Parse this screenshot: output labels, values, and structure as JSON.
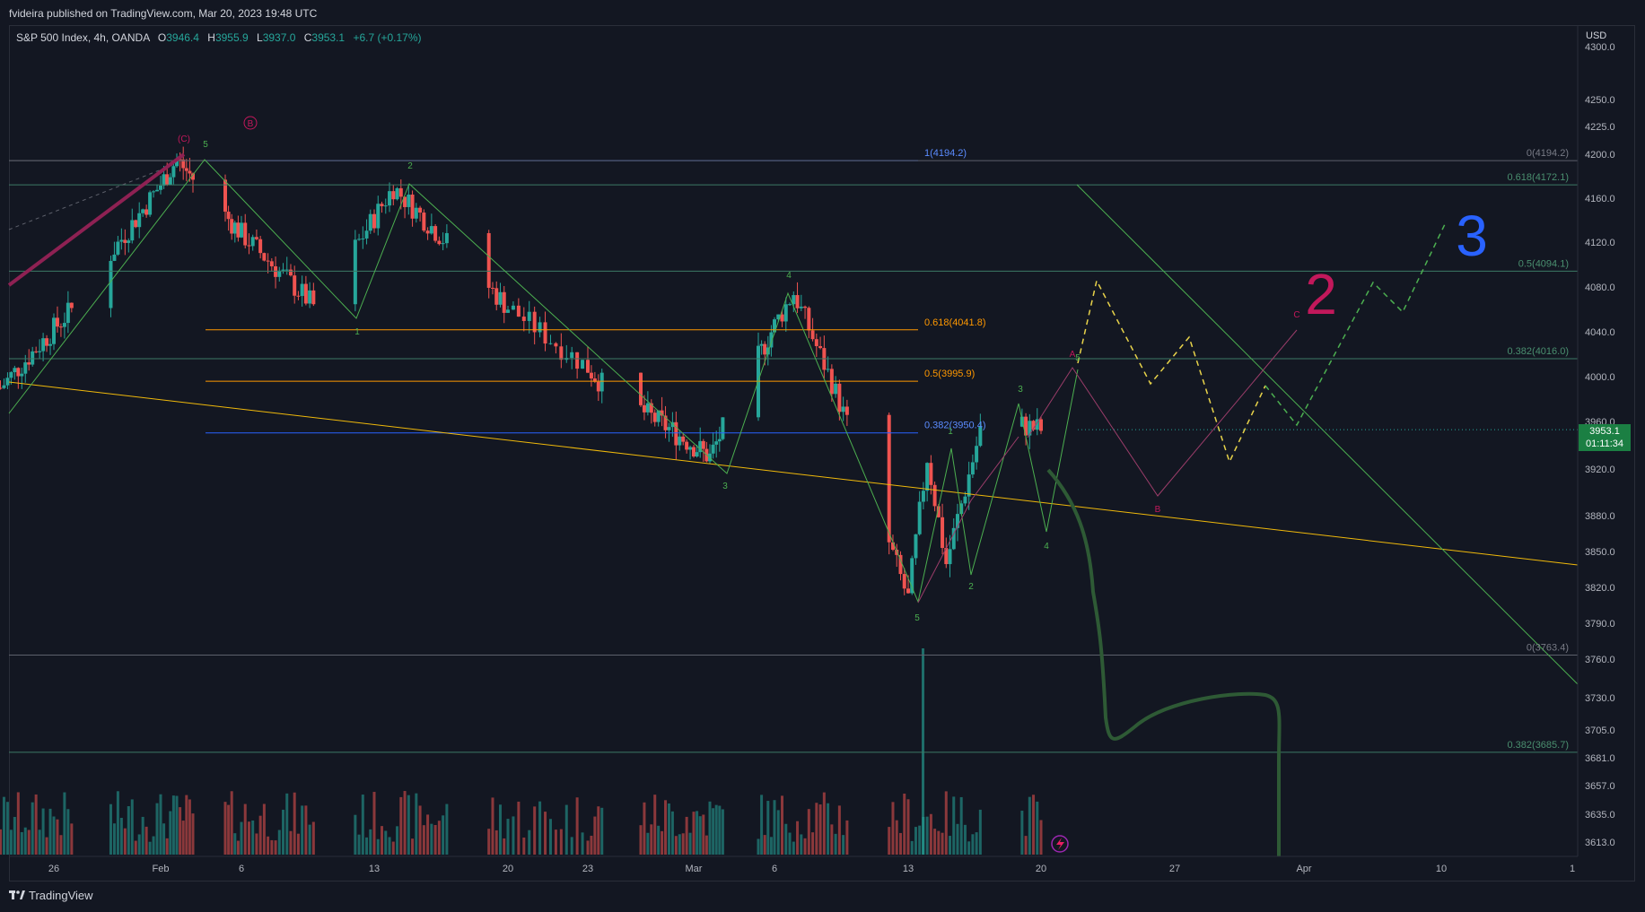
{
  "header": {
    "publish_line": "fvideira published on TradingView.com, Mar 20, 2023 19:48 UTC"
  },
  "legend": {
    "symbol": "S&P 500 Index, 4h, OANDA",
    "open_label": "O",
    "open": "3946.4",
    "high_label": "H",
    "high": "3955.9",
    "low_label": "L",
    "low": "3937.0",
    "close_label": "C",
    "close": "3953.1",
    "change": "+6.7 (+0.17%)"
  },
  "price_axis": {
    "currency": "USD",
    "current_price": "3953.1",
    "countdown": "01:11:34"
  },
  "footer": {
    "brand": "TradingView"
  },
  "colors": {
    "background": "#131722",
    "up": "#26a69a",
    "down": "#ef5350",
    "wave_green": "#4caf50",
    "fib_blue": "#2962ff",
    "fib_orange": "#ff9800",
    "trend_yellow": "#f0b90b",
    "projection_red": "#e91e63",
    "path_dark_green": "#2e5a35",
    "annot_blue": "#2962ff",
    "annot_magenta": "#c2185b"
  },
  "chart_data": {
    "type": "candlestick",
    "symbol": "S&P 500 Index",
    "interval": "4h",
    "source": "OANDA",
    "ylim": [
      3600,
      4310
    ],
    "y_ticks": [
      4300.0,
      4250.0,
      4225.0,
      4200.0,
      4160.0,
      4120.0,
      4080.0,
      4040.0,
      4000.0,
      3960.0,
      3920.0,
      3880.0,
      3850.0,
      3820.0,
      3790.0,
      3760.0,
      3730.0,
      3705.0,
      3681.0,
      3657.0,
      3635.0,
      3613.0
    ],
    "y_tick_labels": [
      "4300.0",
      "4250.0",
      "4225.0",
      "4200.0",
      "4160.0",
      "4120.0",
      "4080.0",
      "4040.0",
      "4000.0",
      "3960.0",
      "3920.0",
      "3880.0",
      "3850.0",
      "3820.0",
      "3790.0",
      "3760.0",
      "3730.0",
      "3705.0",
      "3681.0",
      "3657.0",
      "3635.0",
      "3613.0"
    ],
    "x_tick_labels": [
      "26",
      "Feb",
      "6",
      "13",
      "20",
      "23",
      "Mar",
      "6",
      "13",
      "20",
      "27",
      "Apr",
      "10",
      "1"
    ],
    "price_anchors": [
      {
        "date": "Jan 23",
        "price": 3990
      },
      {
        "date": "Jan 27",
        "price": 4060
      },
      {
        "date": "Feb 2",
        "price": 4195
      },
      {
        "date": "Feb 10",
        "price": 4060
      },
      {
        "date": "Feb 14",
        "price": 4170
      },
      {
        "date": "Feb 24",
        "price": 3990
      },
      {
        "date": "Mar 2",
        "price": 3930
      },
      {
        "date": "Mar 7",
        "price": 4075
      },
      {
        "date": "Mar 9",
        "price": 3995
      },
      {
        "date": "Mar 13",
        "price": 3810
      },
      {
        "date": "Mar 14",
        "price": 3930
      },
      {
        "date": "Mar 15",
        "price": 3840
      },
      {
        "date": "Mar 17",
        "price": 3965
      },
      {
        "date": "Mar 20",
        "price": 3953
      }
    ],
    "fib_levels_left": [
      {
        "label": "1(4194.2)",
        "price": 4194.2
      },
      {
        "label": "0.618(4041.8)",
        "price": 4041.8
      },
      {
        "label": "0.5(3995.9)",
        "price": 3995.9
      },
      {
        "label": "0.382(3950.4)",
        "price": 3950.4
      }
    ],
    "fib_levels_right": [
      {
        "label": "0(4194.2)",
        "price": 4194.2
      },
      {
        "label": "0.618(4172.1)",
        "price": 4172.1
      },
      {
        "label": "0.5(4094.1)",
        "price": 4094.1
      },
      {
        "label": "0.382(4016.0)",
        "price": 4016.0
      },
      {
        "label": "0(3763.4)",
        "price": 3763.4
      },
      {
        "label": "0.382(3685.7)",
        "price": 3685.7
      }
    ],
    "wave_labels": [
      {
        "text": "(C)",
        "date": "Feb 1",
        "price": 4210
      },
      {
        "text": "B",
        "date": "Feb 4",
        "price": 4225
      },
      {
        "text": "5",
        "date": "Feb 2",
        "price": 4205
      },
      {
        "text": "2",
        "date": "Feb 14",
        "price": 4183
      },
      {
        "text": "1",
        "date": "Feb 10",
        "price": 4037
      },
      {
        "text": "3",
        "date": "Mar 2",
        "price": 3912
      },
      {
        "text": "4",
        "date": "Mar 7",
        "price": 4086
      },
      {
        "text": "5",
        "date": "Mar 13",
        "price": 3790
      },
      {
        "text": "2",
        "date": "Mar 15",
        "price": 3818
      },
      {
        "text": "3",
        "date": "Mar 17",
        "price": 3977
      },
      {
        "text": "4",
        "date": "Mar 20",
        "price": 3855
      },
      {
        "text": "1",
        "date": "Mar 14",
        "price": 3950
      },
      {
        "text": "A",
        "date": "Mar 21",
        "price": 4010
      },
      {
        "text": "5",
        "date": "Mar 21",
        "price": 4005
      },
      {
        "text": "B",
        "date": "Mar 25",
        "price": 3884
      },
      {
        "text": "C",
        "date": "Apr 1",
        "price": 4050
      }
    ],
    "annotations": [
      {
        "text": "2"
      },
      {
        "text": "3"
      }
    ]
  }
}
